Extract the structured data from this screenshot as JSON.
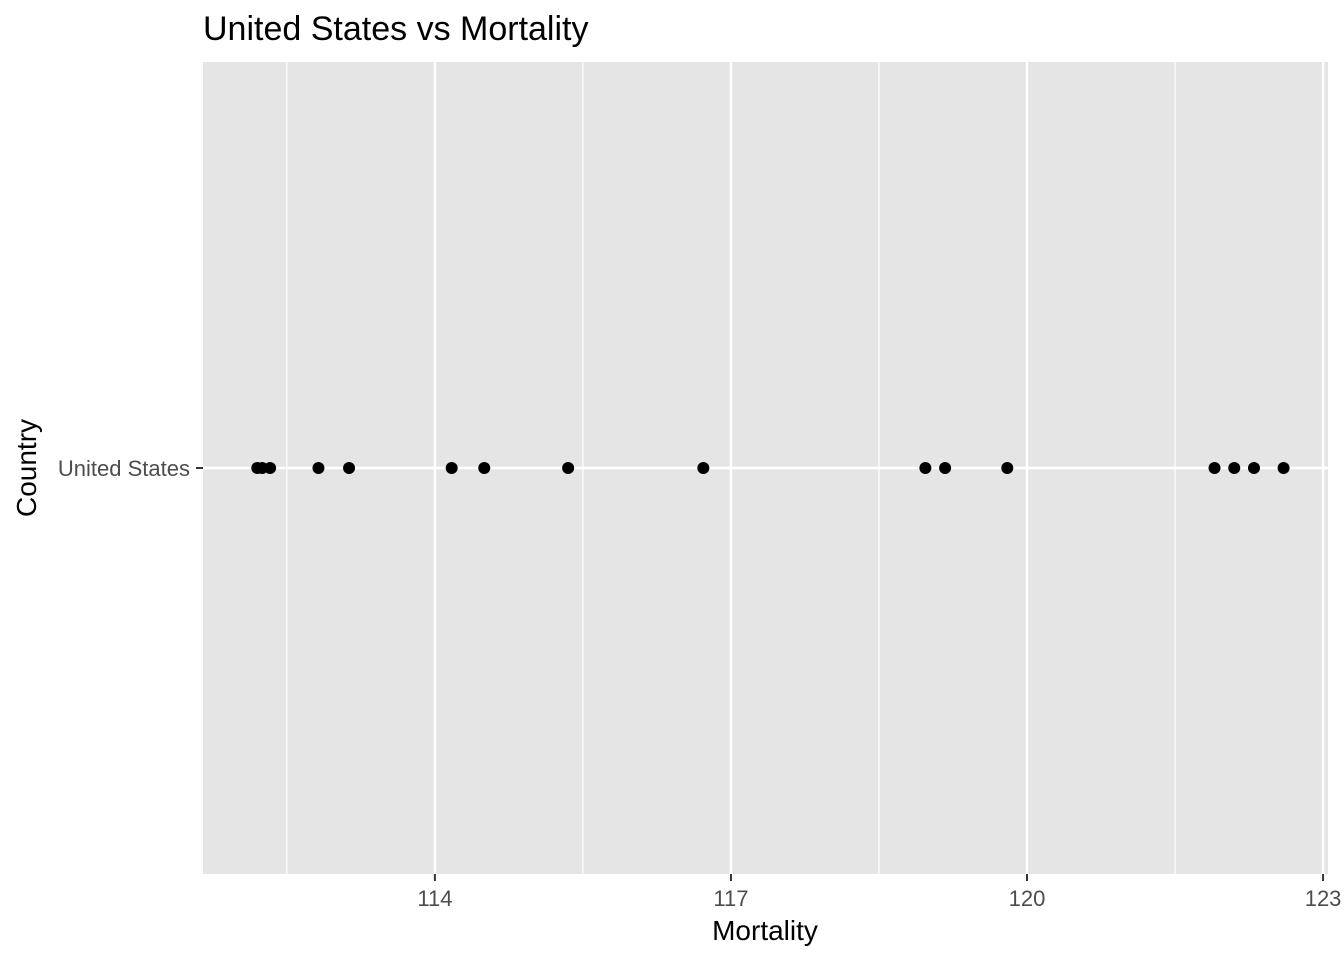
{
  "chart_data": {
    "type": "scatter",
    "title": "United States vs Mortality",
    "xlabel": "Mortality",
    "ylabel": "Country",
    "categories": [
      "United States"
    ],
    "xlim": [
      111.65,
      123.05
    ],
    "x_ticks": [
      114,
      117,
      120,
      123
    ],
    "x_tick_labels": [
      "114",
      "117",
      "120",
      "123"
    ],
    "grid": true,
    "legend": "none",
    "points": [
      {
        "category": "United States",
        "x": 112.2
      },
      {
        "category": "United States",
        "x": 112.25
      },
      {
        "category": "United States",
        "x": 112.33
      },
      {
        "category": "United States",
        "x": 112.82
      },
      {
        "category": "United States",
        "x": 113.13
      },
      {
        "category": "United States",
        "x": 114.17
      },
      {
        "category": "United States",
        "x": 114.5
      },
      {
        "category": "United States",
        "x": 115.35
      },
      {
        "category": "United States",
        "x": 116.72
      },
      {
        "category": "United States",
        "x": 118.97
      },
      {
        "category": "United States",
        "x": 119.17
      },
      {
        "category": "United States",
        "x": 119.8
      },
      {
        "category": "United States",
        "x": 121.9
      },
      {
        "category": "United States",
        "x": 122.1
      },
      {
        "category": "United States",
        "x": 122.3
      },
      {
        "category": "United States",
        "x": 122.6
      }
    ],
    "colors": {
      "panel_background": "#e5e5e5",
      "grid_line": "#ffffff",
      "point": "#000000",
      "tick_label": "#4d4d4d",
      "tick_mark": "#333333"
    }
  }
}
